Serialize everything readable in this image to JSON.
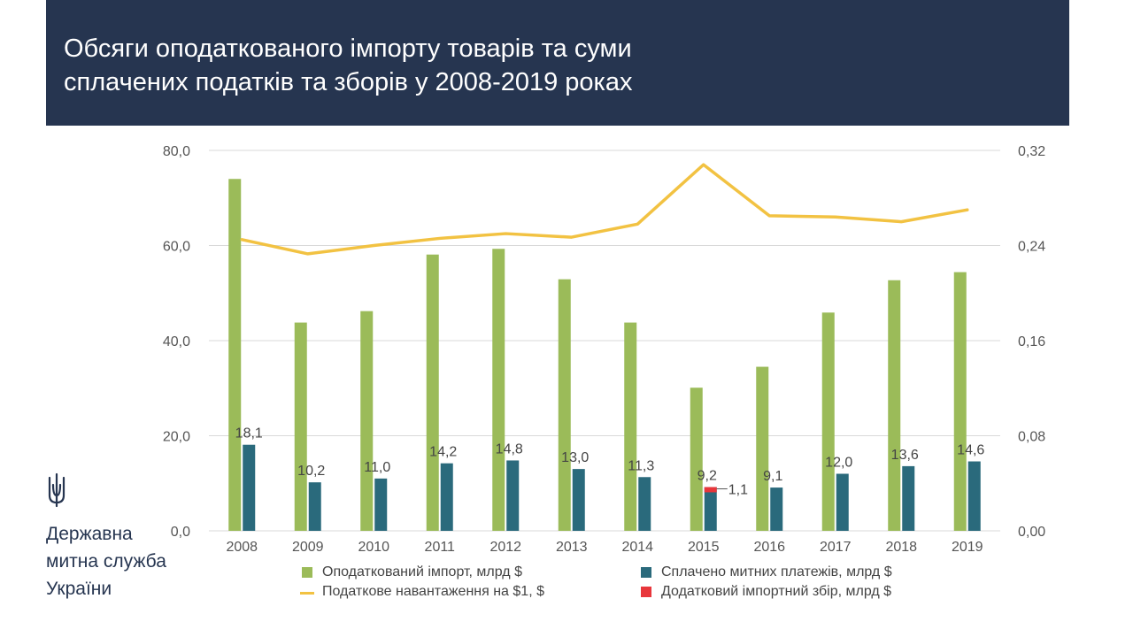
{
  "header": {
    "title_line1": "Обсяги оподаткованого імпорту товарів та суми",
    "title_line2": "сплачених податків та зборів у 2008-2019 роках"
  },
  "organization": {
    "line1": "Державна",
    "line2": "митна служба",
    "line3": "України",
    "emblem_icon": "trident-icon"
  },
  "colors": {
    "header_bg": "#263550",
    "import_bar": "#9bbb59",
    "customs_bar": "#2a6a7c",
    "tax_line": "#f2c242",
    "extra_fee": "#e8363b"
  },
  "chart_data": {
    "type": "bar",
    "categories": [
      "2008",
      "2009",
      "2010",
      "2011",
      "2012",
      "2013",
      "2014",
      "2015",
      "2016",
      "2017",
      "2018",
      "2019"
    ],
    "series": [
      {
        "name": "Оподаткований імпорт, млрд $",
        "axis": "left",
        "kind": "bar",
        "values": [
          74.0,
          43.8,
          46.2,
          58.1,
          59.3,
          52.9,
          43.8,
          30.1,
          34.5,
          45.9,
          52.7,
          54.4
        ]
      },
      {
        "name": "Сплачено митних платежів, млрд $",
        "axis": "left",
        "kind": "bar",
        "values": [
          18.1,
          10.2,
          11.0,
          14.2,
          14.8,
          13.0,
          11.3,
          9.2,
          9.1,
          12.0,
          13.6,
          14.6
        ],
        "labels": [
          "18,1",
          "10,2",
          "11,0",
          "14,2",
          "14,8",
          "13,0",
          "11,3",
          "9,2",
          "9,1",
          "12,0",
          "13,6",
          "14,6"
        ]
      },
      {
        "name": "Додатковий імпортний збір, млрд $",
        "axis": "left",
        "kind": "stacked",
        "values": [
          0,
          0,
          0,
          0,
          0,
          0,
          0,
          1.1,
          0,
          0,
          0,
          0
        ],
        "labels": [
          "",
          "",
          "",
          "",
          "",
          "",
          "",
          "1,1",
          "",
          "",
          "",
          ""
        ]
      },
      {
        "name": "Податкове навантаження на $1, $",
        "axis": "right",
        "kind": "line",
        "values": [
          0.245,
          0.233,
          0.24,
          0.246,
          0.25,
          0.247,
          0.258,
          0.308,
          0.265,
          0.264,
          0.26,
          0.27
        ]
      }
    ],
    "ylim": [
      0,
      80
    ],
    "yticks": [
      "0,0",
      "20,0",
      "40,0",
      "60,0",
      "80,0"
    ],
    "y2lim": [
      0,
      0.32
    ],
    "y2ticks": [
      "0,00",
      "0,08",
      "0,16",
      "0,24",
      "0,32"
    ],
    "legend": {
      "import": "Оподаткований імпорт, млрд $",
      "customs": "Сплачено митних платежів, млрд $",
      "tax": "Податкове навантаження на $1, $",
      "fee": "Додатковий імпортний збір, млрд $"
    }
  }
}
